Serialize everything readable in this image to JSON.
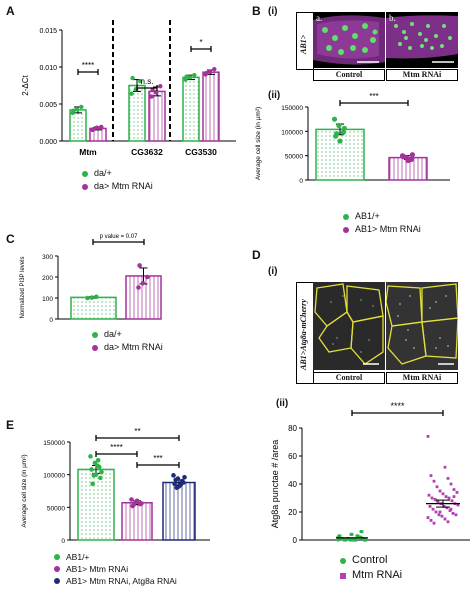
{
  "panelA": {
    "letter": "A",
    "ylabel": "2-ΔCt",
    "yticks": [
      "0.000",
      "0.005",
      "0.010",
      "0.015"
    ],
    "genes": [
      "Mtm",
      "CG3632",
      "CG3530"
    ],
    "sig": [
      "****",
      "n.s.",
      "*"
    ],
    "legend": [
      "da/+",
      "da> Mtm RNAi"
    ]
  },
  "panelB": {
    "letter": "B",
    "sub_i": "(i)",
    "sub_ii": "(ii)",
    "side_label": "AB1>",
    "img_a": "a.",
    "img_b": "b.",
    "cap_control": "Control",
    "cap_rnai": "Mtm RNAi",
    "ylabel": "Average cell size (in µm²)",
    "yticks": [
      "0",
      "50000",
      "100000",
      "150000"
    ],
    "sig": "***",
    "legend": [
      "AB1/+",
      "AB1> Mtm  RNAi"
    ]
  },
  "panelC": {
    "letter": "C",
    "ylabel": "Normalized PI3P levels",
    "yticks": [
      "0",
      "100",
      "200",
      "300"
    ],
    "pval": "p value = 0.07",
    "legend": [
      "da/+",
      "da> Mtm RNAi"
    ]
  },
  "panelD": {
    "letter": "D",
    "sub_i": "(i)",
    "sub_ii": "(ii)",
    "side_label": "AB1>Atg8a-mCherry",
    "cap_control": "Control",
    "cap_rnai": "Mtm RNAi",
    "ylabel": "Atg8a punctae # /area",
    "yticks": [
      "0",
      "20",
      "40",
      "60",
      "80"
    ],
    "sig": "****",
    "legend": [
      "Control",
      "Mtm RNAi"
    ]
  },
  "panelE": {
    "letter": "E",
    "ylabel": "Average cell size (in µm²)",
    "yticks": [
      "0",
      "50000",
      "100000",
      "150000"
    ],
    "sig": [
      "**",
      "****",
      "***"
    ],
    "legend": [
      "AB1/+",
      "AB1> Mtm RNAi",
      "AB1> Mtm RNAi, Atg8a RNAi"
    ]
  },
  "colors": {
    "green": "#2db34a",
    "purple": "#a3329b",
    "navy": "#1f2a78",
    "magenta": "#b43fb3"
  },
  "chart_data": [
    {
      "type": "bar",
      "panel": "A",
      "categories": [
        "Mtm",
        "CG3632",
        "CG3530"
      ],
      "ylabel": "2-ΔCt",
      "ylim": [
        0,
        0.015
      ],
      "series": [
        {
          "name": "da/+",
          "values": [
            0.0042,
            0.0075,
            0.0086
          ],
          "errors": [
            0.0004,
            0.0008,
            0.0003
          ]
        },
        {
          "name": "da> Mtm RNAi",
          "values": [
            0.0017,
            0.0067,
            0.0093
          ],
          "errors": [
            0.0002,
            0.0006,
            0.0003
          ]
        }
      ]
    },
    {
      "type": "bar",
      "panel": "B(ii)",
      "categories": [
        "AB1/+",
        "AB1> Mtm  RNAi"
      ],
      "ylabel": "Average cell size (in µm²)",
      "ylim": [
        0,
        150000
      ],
      "values": [
        104000,
        46000
      ],
      "errors": [
        11000,
        4000
      ]
    },
    {
      "type": "bar",
      "panel": "C",
      "categories": [
        "da/+",
        "da> Mtm RNAi"
      ],
      "ylabel": "Normalized PI3P levels",
      "ylim": [
        0,
        300
      ],
      "values": [
        103,
        205
      ],
      "errors": [
        4,
        38
      ]
    },
    {
      "type": "scatter",
      "panel": "D(ii)",
      "categories": [
        "Control",
        "Mtm RNAi"
      ],
      "ylabel": "Atg8a punctae # /area",
      "ylim": [
        0,
        80
      ],
      "means": [
        1.5,
        26
      ],
      "errors": [
        0.5,
        2.5
      ]
    },
    {
      "type": "bar",
      "panel": "E",
      "categories": [
        "AB1/+",
        "AB1> Mtm RNAi",
        "AB1> Mtm RNAi, Atg8a RNAi"
      ],
      "ylabel": "Average cell size (in µm²)",
      "ylim": [
        0,
        150000
      ],
      "values": [
        108000,
        57000,
        88000
      ],
      "errors": [
        6000,
        3000,
        4000
      ]
    }
  ]
}
